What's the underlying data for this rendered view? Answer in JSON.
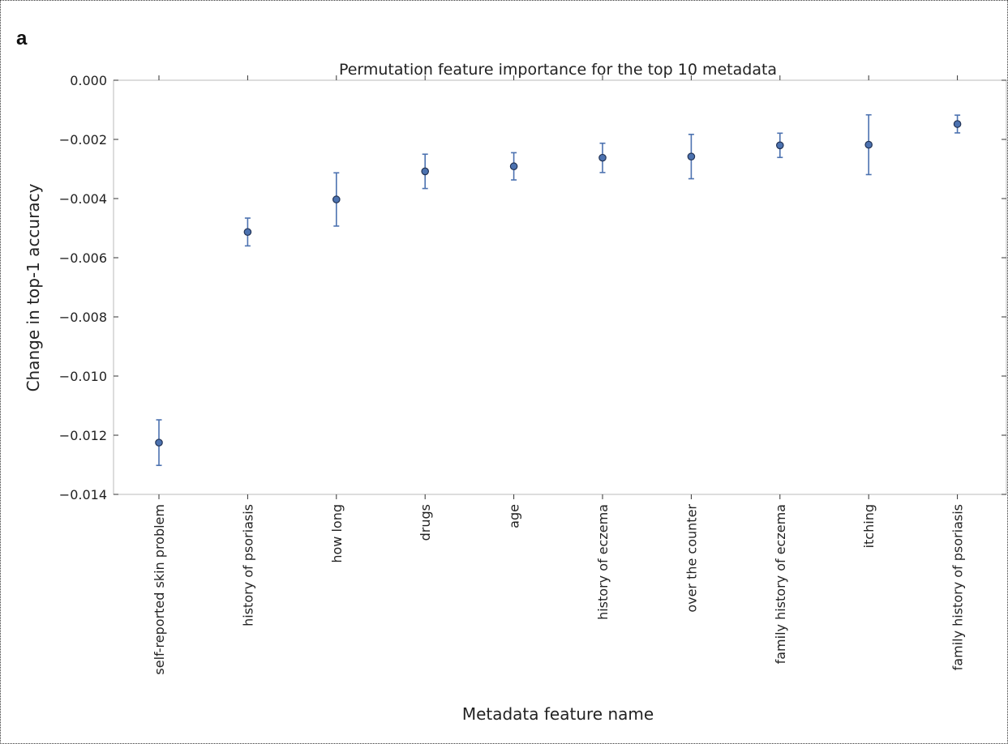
{
  "panel_label": "a",
  "chart_data": {
    "type": "scatter",
    "title": "Permutation feature importance for the top 10 metadata",
    "xlabel": "Metadata feature name",
    "ylabel": "Change in top-1 accuracy",
    "categories": [
      "self-reported skin problem",
      "history of psoriasis",
      "how long",
      "drugs",
      "age",
      "history of eczema",
      "over the counter",
      "family history of eczema",
      "itching",
      "family history of psoriasis"
    ],
    "values": [
      -0.01225,
      -0.00513,
      -0.00403,
      -0.00308,
      -0.00291,
      -0.00262,
      -0.00258,
      -0.0022,
      -0.00218,
      -0.00148
    ],
    "error_low": [
      -0.01302,
      -0.0056,
      -0.00493,
      -0.00366,
      -0.00337,
      -0.00312,
      -0.00333,
      -0.00261,
      -0.00319,
      -0.00178
    ],
    "error_high": [
      -0.01148,
      -0.00466,
      -0.00313,
      -0.0025,
      -0.00245,
      -0.00213,
      -0.00183,
      -0.00179,
      -0.00117,
      -0.00118
    ],
    "ylim": [
      -0.014,
      0.0
    ],
    "yticks": [
      "0.000",
      "−0.002",
      "−0.004",
      "−0.006",
      "−0.008",
      "−0.010",
      "−0.012",
      "−0.014"
    ],
    "ytick_values": [
      0.0,
      -0.002,
      -0.004,
      -0.006,
      -0.008,
      -0.01,
      -0.012,
      -0.014
    ],
    "grid": false,
    "marker_color": "#4c72b0",
    "marker_edge_color": "#223355",
    "error_color": "#4c72b0"
  }
}
